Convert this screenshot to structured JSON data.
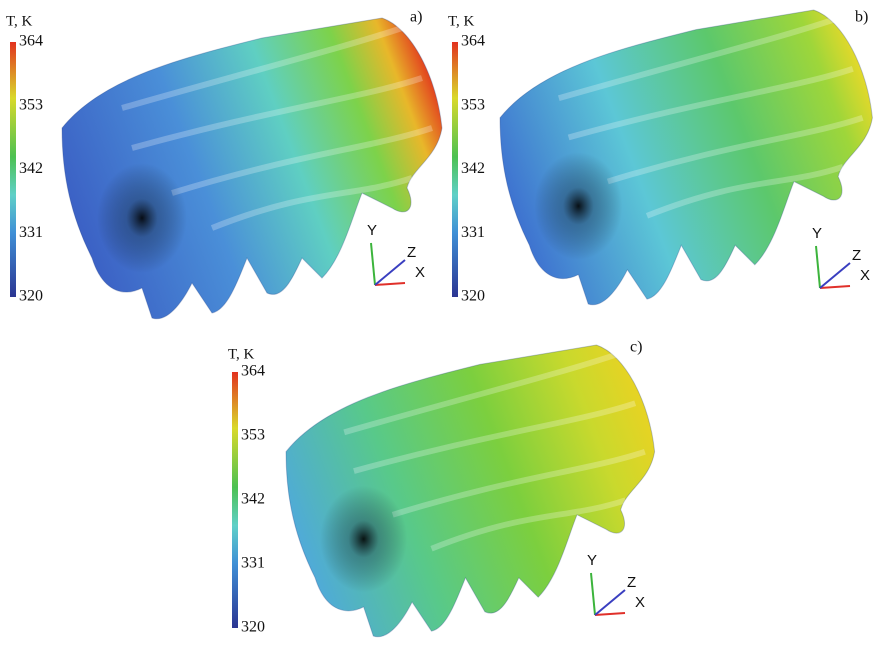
{
  "panels": [
    {
      "label": "a)",
      "colorbar": {
        "title": "T, K",
        "ticks": [
          "364",
          "353",
          "342",
          "331",
          "320"
        ]
      },
      "axes": {
        "y": "Y",
        "z": "Z",
        "x": "X"
      }
    },
    {
      "label": "b)",
      "colorbar": {
        "title": "T, K",
        "ticks": [
          "364",
          "353",
          "342",
          "331",
          "320"
        ]
      },
      "axes": {
        "y": "Y",
        "z": "Z",
        "x": "X"
      }
    },
    {
      "label": "c)",
      "colorbar": {
        "title": "T, K",
        "ticks": [
          "364",
          "353",
          "342",
          "331",
          "320"
        ]
      },
      "axes": {
        "y": "Y",
        "z": "Z",
        "x": "X"
      }
    }
  ]
}
